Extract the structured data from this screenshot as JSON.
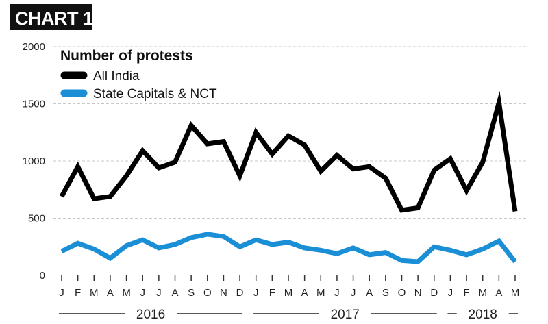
{
  "badge": "CHART 1",
  "chart_data": {
    "type": "line",
    "title": "Number of protests",
    "categories": [
      "J",
      "F",
      "M",
      "A",
      "M",
      "J",
      "J",
      "A",
      "S",
      "O",
      "N",
      "D",
      "J",
      "F",
      "M",
      "A",
      "M",
      "J",
      "J",
      "A",
      "S",
      "O",
      "N",
      "D",
      "J",
      "F",
      "M",
      "A",
      "M"
    ],
    "years": [
      {
        "label": "2016",
        "start": 0,
        "end": 11
      },
      {
        "label": "2017",
        "start": 12,
        "end": 23
      },
      {
        "label": "2018",
        "start": 24,
        "end": 28
      }
    ],
    "ylim": [
      0,
      2000
    ],
    "yticks": [
      0,
      500,
      1000,
      1500,
      2000
    ],
    "grid": true,
    "legend_position": "top-left",
    "series": [
      {
        "name": "All India",
        "color": "#000000",
        "values": [
          690,
          950,
          670,
          690,
          870,
          1090,
          940,
          990,
          1310,
          1150,
          1170,
          870,
          1250,
          1060,
          1220,
          1140,
          910,
          1050,
          930,
          950,
          850,
          570,
          590,
          920,
          1020,
          740,
          990,
          1510,
          560
        ]
      },
      {
        "name": "State Capitals & NCT",
        "color": "#1b8fd6",
        "values": [
          210,
          280,
          230,
          150,
          260,
          310,
          240,
          270,
          330,
          360,
          340,
          250,
          310,
          270,
          290,
          240,
          220,
          190,
          240,
          180,
          200,
          130,
          120,
          250,
          220,
          180,
          230,
          300,
          120
        ]
      }
    ]
  }
}
